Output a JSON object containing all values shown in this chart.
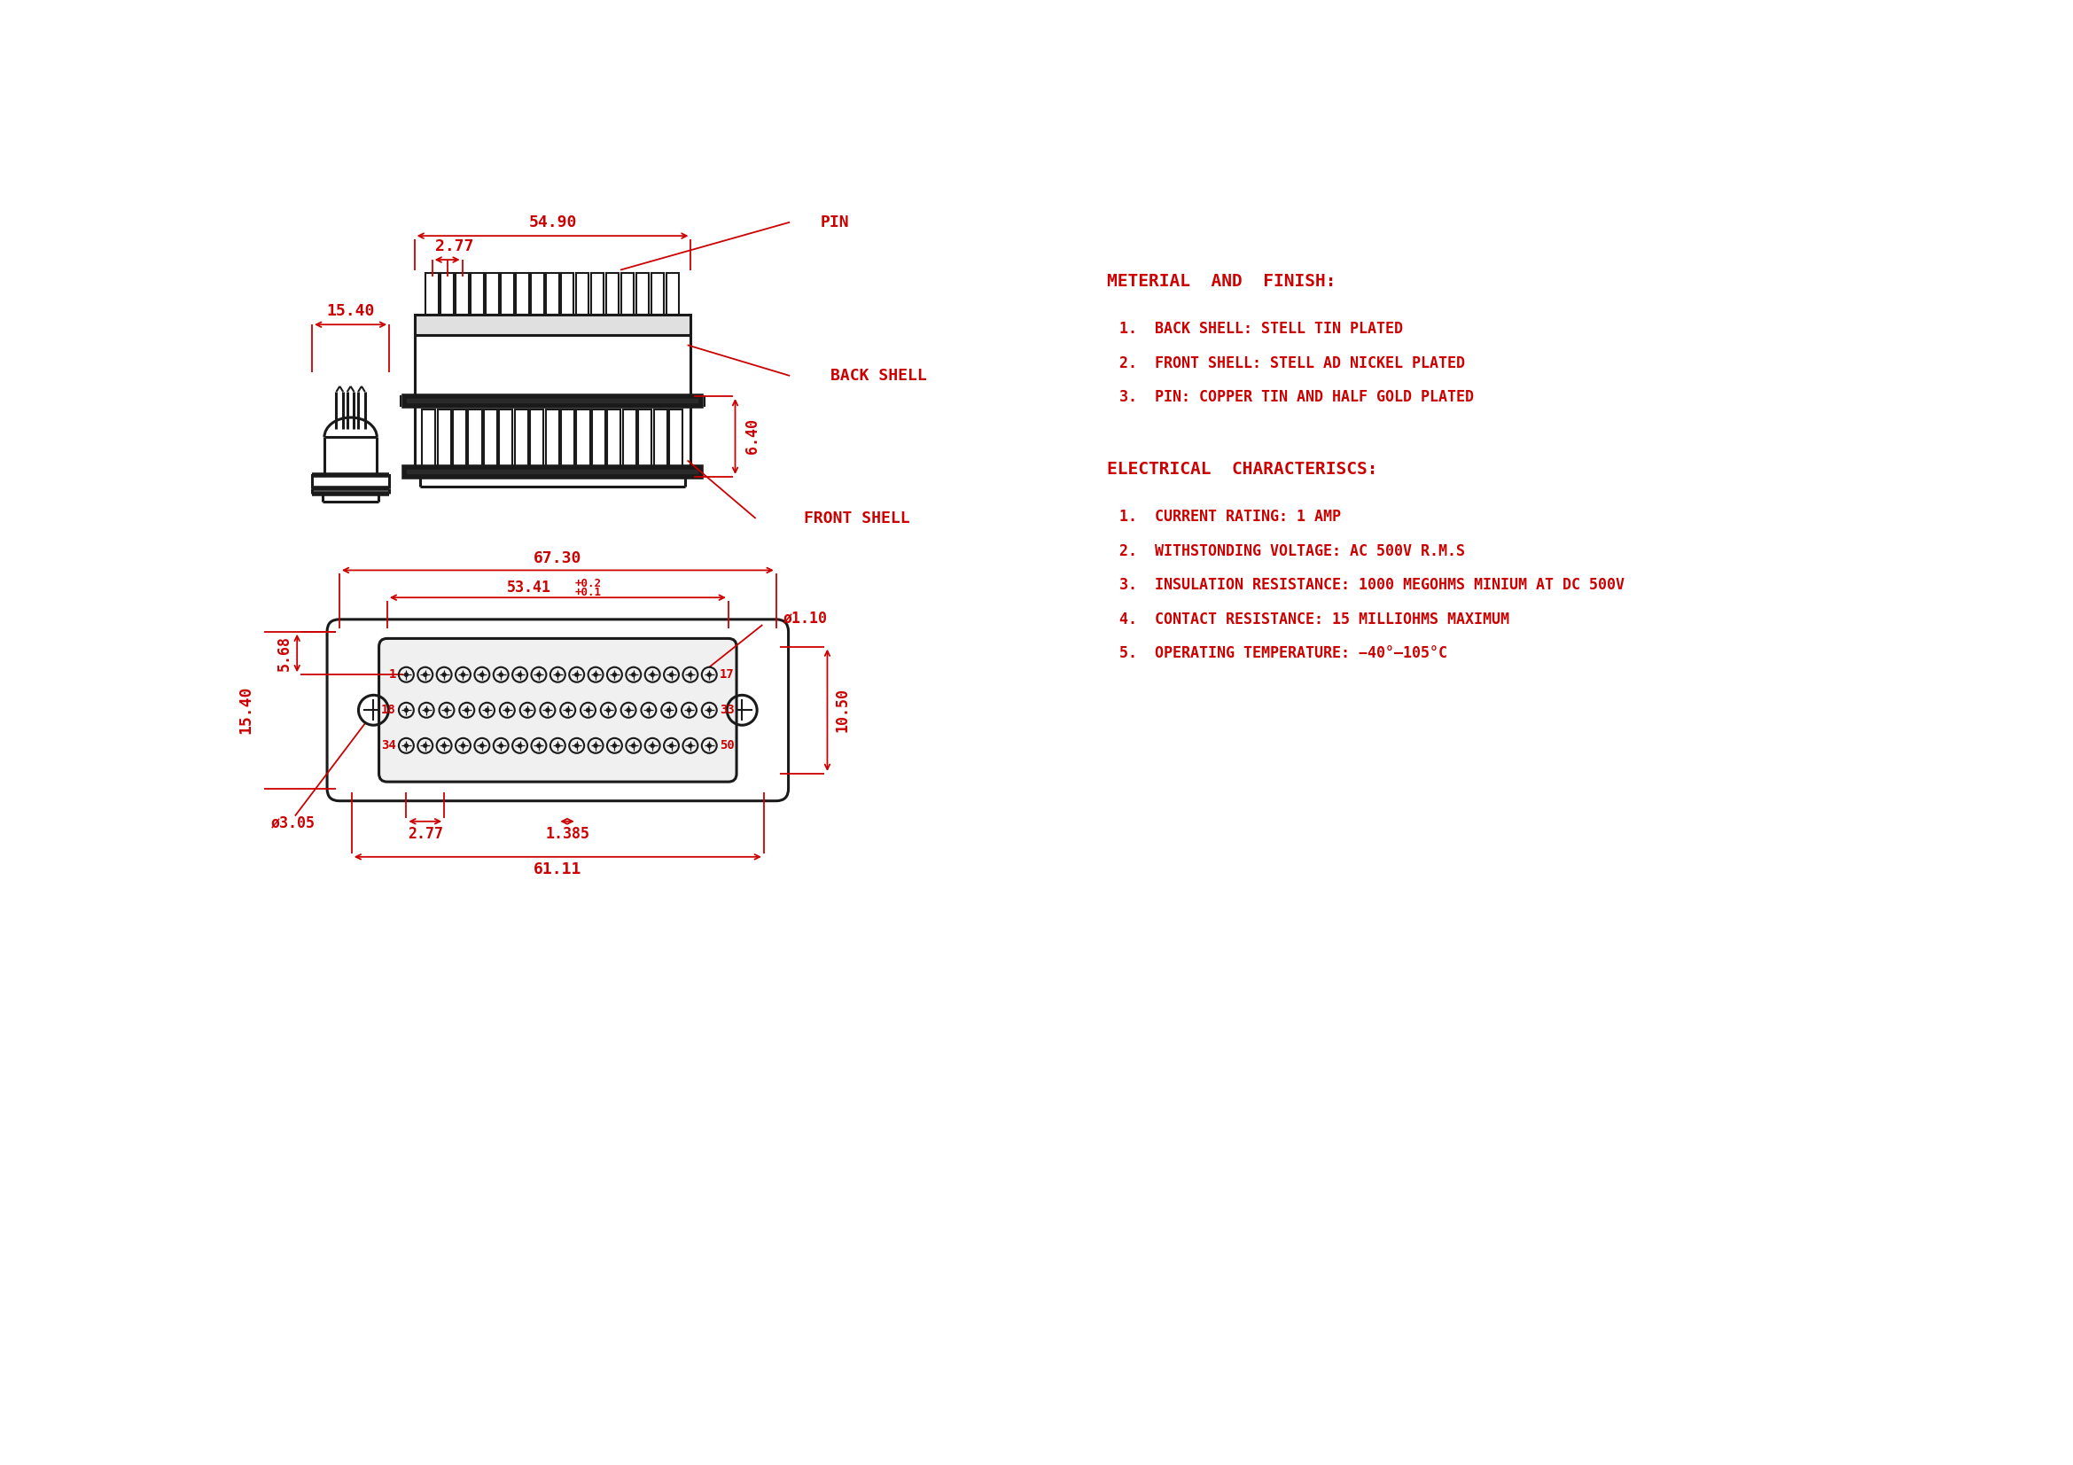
{
  "bg_color": "#ffffff",
  "line_color": "#1a1a1a",
  "red_color": "#cc0000",
  "material_title": "METERIAL  AND  FINISH:",
  "material_items": [
    "1.  BACK SHELL: STELL TIN PLATED",
    "2.  FRONT SHELL: STELL AD NICKEL PLATED",
    "3.  PIN: COPPER TIN AND HALF GOLD PLATED"
  ],
  "electrical_title": "ELECTRICAL  CHARACTERISCS:",
  "electrical_items": [
    "1.  CURRENT RATING: 1 AMP",
    "2.  WITHSTONDING VOLTAGE: AC 500V R.M.S",
    "3.  INSULATION RESISTANCE: 1000 MEGOHMS MINIUM AT DC 500V",
    "4.  CONTACT RESISTANCE: 15 MILLIOHMS MAXIMUM",
    "5.  OPERATING TEMPERATURE: −40°–105°C"
  ],
  "labels": {
    "pin": "—PIN",
    "back_shell": "—BACK SHELL",
    "front_shell": "—FRONT SHELL"
  }
}
